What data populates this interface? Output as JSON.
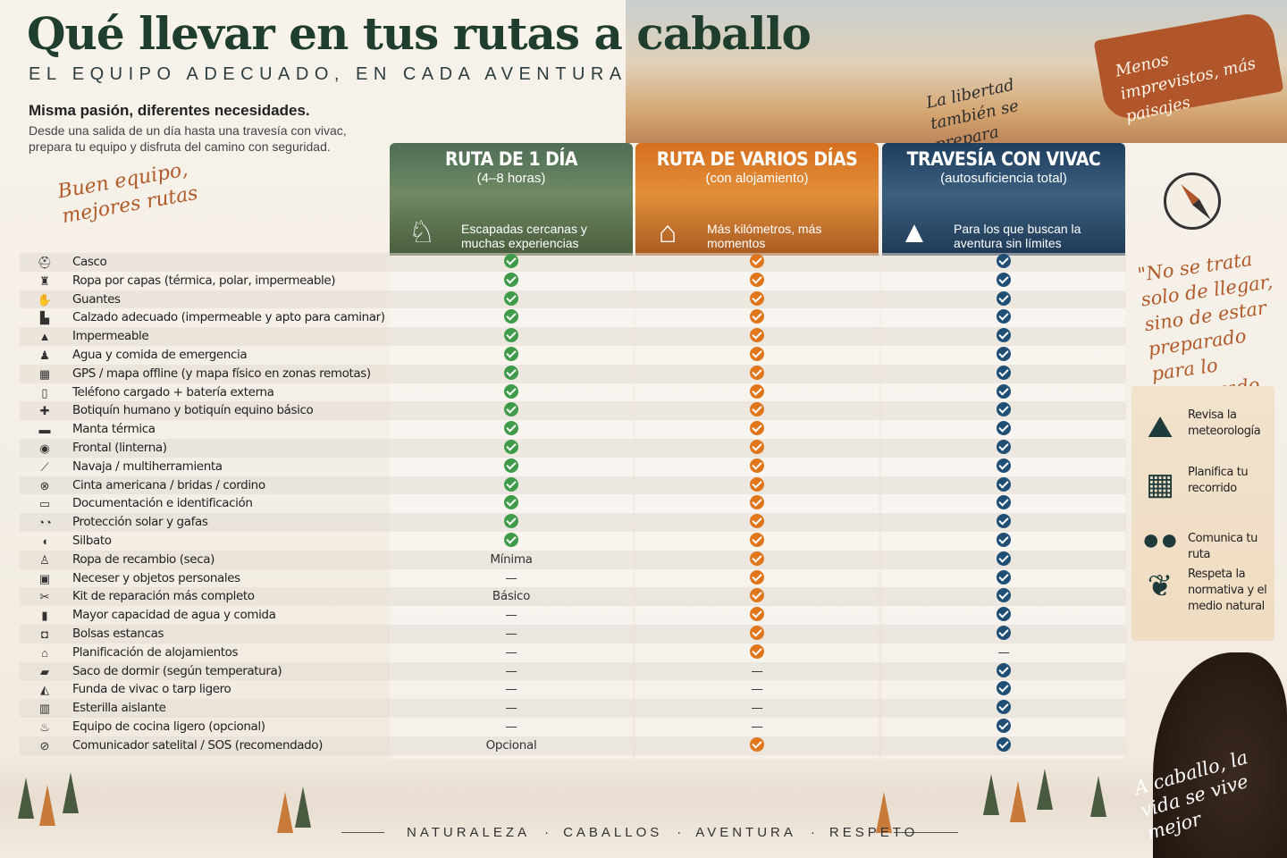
{
  "title": "Qué llevar en tus rutas a caballo",
  "subtitle": "EL EQUIPO ADECUADO, EN CADA AVENTURA",
  "intro": {
    "heading": "Misma pasión, diferentes necesidades.",
    "text": "Desde una salida de un día hasta una travesía con vivac, prepara tu equipo y disfruta del camino con seguridad."
  },
  "handwritten": {
    "left": "Buen equipo, mejores rutas",
    "middle": "La libertad también se prepara",
    "brush": "Menos imprevistos, más paisajes",
    "quote": "\"No se trata solo de llegar, sino de estar preparado para lo inesperado",
    "bottom": "A caballo, la vida se vive mejor"
  },
  "columns": [
    {
      "title": "RUTA DE 1 DÍA",
      "subtitle": "(4–8 horas)",
      "desc": "Escapadas cercanas y muchas experiencias",
      "icon": "horse-rider-icon",
      "color": "#3f9a4a"
    },
    {
      "title": "RUTA DE VARIOS DÍAS",
      "subtitle": "(con alojamiento)",
      "desc": "Más kilómetros, más momentos",
      "icon": "house-icon",
      "color": "#e0761c"
    },
    {
      "title": "TRAVESÍA CON VIVAC",
      "subtitle": "(autosuficiencia total)",
      "desc": "Para los que buscan la aventura sin límites",
      "icon": "tent-icon",
      "color": "#1f4f75"
    }
  ],
  "rows": [
    {
      "item": "Casco",
      "icon": "helmet-icon",
      "glyph": "⛑",
      "v": [
        "check",
        "check",
        "check"
      ]
    },
    {
      "item": "Ropa por capas (térmica, polar, impermeable)",
      "icon": "jacket-icon",
      "glyph": "♜",
      "v": [
        "check",
        "check",
        "check"
      ]
    },
    {
      "item": "Guantes",
      "icon": "gloves-icon",
      "glyph": "✋",
      "v": [
        "check",
        "check",
        "check"
      ]
    },
    {
      "item": "Calzado adecuado (impermeable y apto para caminar)",
      "icon": "boots-icon",
      "glyph": "▙",
      "v": [
        "check",
        "check",
        "check"
      ]
    },
    {
      "item": "Impermeable",
      "icon": "raincoat-icon",
      "glyph": "▲",
      "v": [
        "check",
        "check",
        "check"
      ]
    },
    {
      "item": "Agua y comida de emergencia",
      "icon": "water-bottle-icon",
      "glyph": "♟",
      "v": [
        "check",
        "check",
        "check"
      ]
    },
    {
      "item": "GPS / mapa offline (y mapa físico en zonas remotas)",
      "icon": "map-icon",
      "glyph": "▦",
      "v": [
        "check",
        "check",
        "check"
      ]
    },
    {
      "item": "Teléfono cargado + batería externa",
      "icon": "phone-icon",
      "glyph": "▯",
      "v": [
        "check",
        "check",
        "check"
      ]
    },
    {
      "item": "Botiquín humano y botiquín equino básico",
      "icon": "first-aid-icon",
      "glyph": "✚",
      "v": [
        "check",
        "check",
        "check"
      ]
    },
    {
      "item": "Manta térmica",
      "icon": "blanket-icon",
      "glyph": "▬",
      "v": [
        "check",
        "check",
        "check"
      ]
    },
    {
      "item": "Frontal (linterna)",
      "icon": "headlamp-icon",
      "glyph": "◉",
      "v": [
        "check",
        "check",
        "check"
      ]
    },
    {
      "item": "Navaja / multiherramienta",
      "icon": "knife-icon",
      "glyph": "⟋",
      "v": [
        "check",
        "check",
        "check"
      ]
    },
    {
      "item": "Cinta americana / bridas / cordino",
      "icon": "tape-icon",
      "glyph": "⊗",
      "v": [
        "check",
        "check",
        "check"
      ]
    },
    {
      "item": "Documentación e identificación",
      "icon": "id-card-icon",
      "glyph": "▭",
      "v": [
        "check",
        "check",
        "check"
      ]
    },
    {
      "item": "Protección solar y gafas",
      "icon": "sunglasses-icon",
      "glyph": "◔◔",
      "v": [
        "check",
        "check",
        "check"
      ]
    },
    {
      "item": "Silbato",
      "icon": "whistle-icon",
      "glyph": "◖",
      "v": [
        "check",
        "check",
        "check"
      ]
    },
    {
      "item": "Ropa de recambio (seca)",
      "icon": "shirt-icon",
      "glyph": "♙",
      "v": [
        "Mínima",
        "check",
        "check"
      ]
    },
    {
      "item": "Neceser y objetos personales",
      "icon": "toiletry-bag-icon",
      "glyph": "▣",
      "v": [
        "—",
        "check",
        "check"
      ]
    },
    {
      "item": "Kit de reparación más completo",
      "icon": "repair-kit-icon",
      "glyph": "✂",
      "v": [
        "Básico",
        "check",
        "check"
      ]
    },
    {
      "item": "Mayor capacidad de agua y comida",
      "icon": "water-container-icon",
      "glyph": "▮",
      "v": [
        "—",
        "check",
        "check"
      ]
    },
    {
      "item": "Bolsas estancas",
      "icon": "dry-bag-icon",
      "glyph": "◘",
      "v": [
        "—",
        "check",
        "check"
      ]
    },
    {
      "item": "Planificación de alojamientos",
      "icon": "lodging-icon",
      "glyph": "⌂",
      "v": [
        "—",
        "check",
        "—"
      ]
    },
    {
      "item": "Saco de dormir (según temperatura)",
      "icon": "sleeping-bag-icon",
      "glyph": "▰",
      "v": [
        "—",
        "—",
        "check"
      ]
    },
    {
      "item": "Funda de vivac o tarp ligero",
      "icon": "tarp-icon",
      "glyph": "◭",
      "v": [
        "—",
        "—",
        "check"
      ]
    },
    {
      "item": "Esterilla aislante",
      "icon": "sleeping-mat-icon",
      "glyph": "▥",
      "v": [
        "—",
        "—",
        "check"
      ]
    },
    {
      "item": "Equipo de cocina ligero (opcional)",
      "icon": "stove-icon",
      "glyph": "♨",
      "v": [
        "—",
        "—",
        "check"
      ]
    },
    {
      "item": "Comunicador satelital / SOS (recomendado)",
      "icon": "satellite-communicator-icon",
      "glyph": "⊘",
      "v": [
        "Opcional",
        "check",
        "check"
      ]
    }
  ],
  "tips": [
    {
      "text": "Revisa la meteorología",
      "icon": "mountain-icon",
      "glyph": "⛰"
    },
    {
      "text": "Planifica tu recorrido",
      "icon": "route-map-icon",
      "glyph": "▦"
    },
    {
      "text": "Comunica tu ruta",
      "icon": "people-icon",
      "glyph": "👥"
    },
    {
      "text": "Respeta la normativa y el medio natural",
      "icon": "leaf-icon",
      "glyph": "❦"
    }
  ],
  "footer": [
    "NATURALEZA",
    "CABALLOS",
    "AVENTURA",
    "RESPETO"
  ]
}
